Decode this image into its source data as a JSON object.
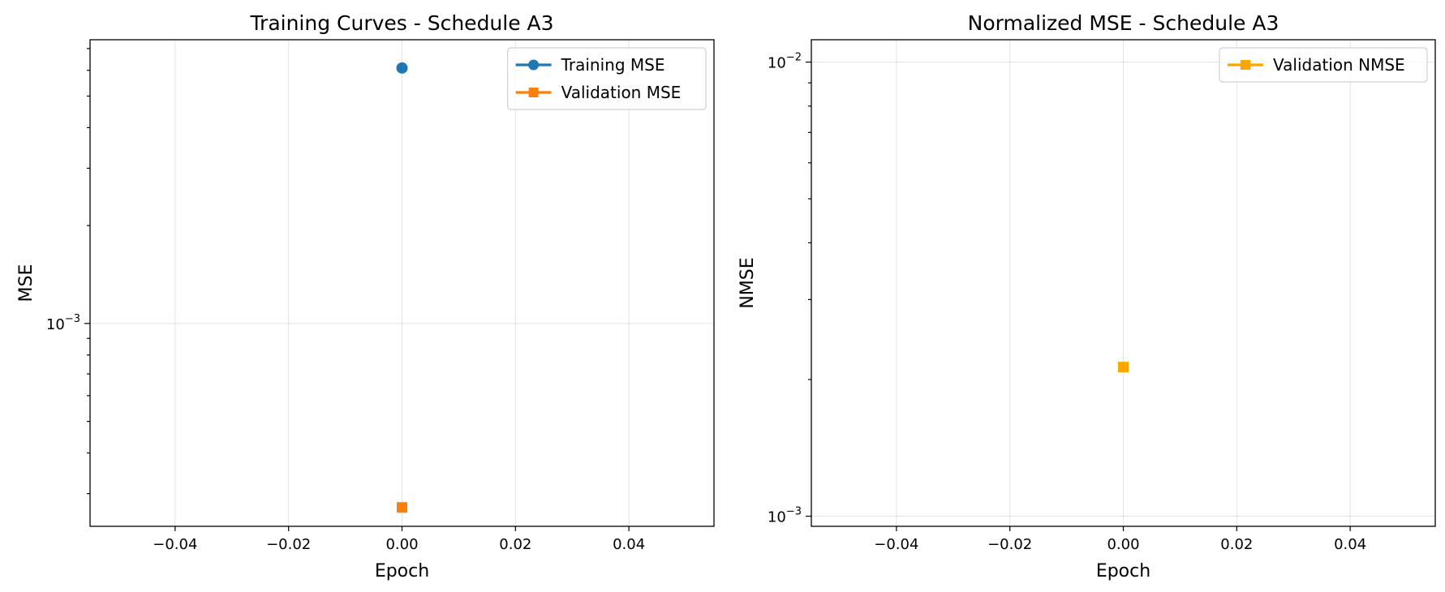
{
  "chart_data": [
    {
      "type": "scatter",
      "title": "Training Curves - Schedule A3",
      "xlabel": "Epoch",
      "ylabel": "MSE",
      "xlim": [
        -0.055,
        0.055
      ],
      "yscale": "log",
      "ylim": [
        0.000238,
        0.00745
      ],
      "x_ticks": [
        -0.04,
        -0.02,
        0.0,
        0.02,
        0.04
      ],
      "x_tick_labels": [
        "−0.04",
        "−0.02",
        "0.00",
        "0.02",
        "0.04"
      ],
      "y_tick_labels": [
        {
          "value": 0.001,
          "base": "10",
          "exp": "−3"
        }
      ],
      "grid": true,
      "legend_position": "upper right",
      "series": [
        {
          "name": "Training MSE",
          "x": [
            0
          ],
          "y": [
            0.0061
          ],
          "marker": "circle",
          "color": "#1f77b4"
        },
        {
          "name": "Validation MSE",
          "x": [
            0
          ],
          "y": [
            0.000272
          ],
          "marker": "square",
          "color": "#ff7f0e"
        }
      ]
    },
    {
      "type": "scatter",
      "title": "Normalized MSE - Schedule A3",
      "xlabel": "Epoch",
      "ylabel": "NMSE",
      "xlim": [
        -0.055,
        0.055
      ],
      "yscale": "log",
      "ylim": [
        0.00095,
        0.0112
      ],
      "x_ticks": [
        -0.04,
        -0.02,
        0.0,
        0.02,
        0.04
      ],
      "x_tick_labels": [
        "−0.04",
        "−0.02",
        "0.00",
        "0.02",
        "0.04"
      ],
      "y_tick_labels": [
        {
          "value": 0.001,
          "base": "10",
          "exp": "−3"
        },
        {
          "value": 0.01,
          "base": "10",
          "exp": "−2"
        }
      ],
      "grid": true,
      "legend_position": "upper right",
      "series": [
        {
          "name": "Validation NMSE",
          "x": [
            0
          ],
          "y": [
            0.00213
          ],
          "marker": "square",
          "color": "#ffa500"
        }
      ]
    }
  ]
}
